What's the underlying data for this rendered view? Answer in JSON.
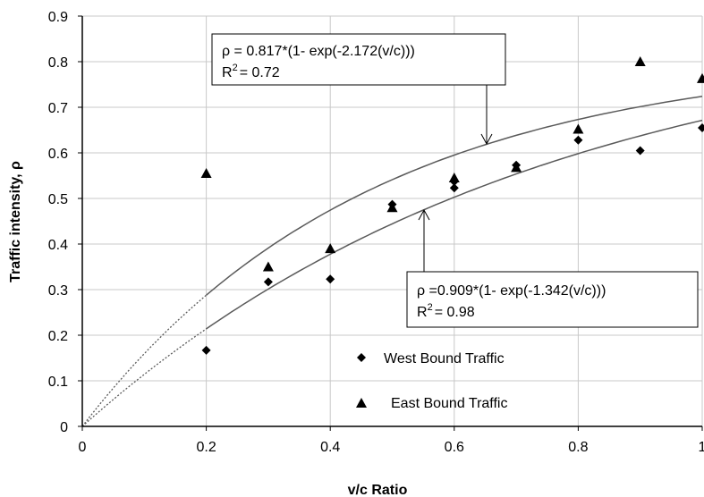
{
  "chart_data": {
    "type": "scatter",
    "title": "",
    "xlabel": "v/c Ratio",
    "ylabel": "Traffic intensity, ρ",
    "xlim": [
      0,
      1
    ],
    "ylim": [
      0,
      0.9
    ],
    "xticks": [
      0,
      0.2,
      0.4,
      0.6,
      0.8,
      1
    ],
    "xtick_labels": [
      "0",
      "0.2",
      "0.4",
      "0.6",
      "0.8",
      "1"
    ],
    "yticks": [
      0,
      0.1,
      0.2,
      0.3,
      0.4,
      0.5,
      0.6,
      0.7,
      0.8,
      0.9
    ],
    "ytick_labels": [
      "0",
      "0.1",
      "0.2",
      "0.3",
      "0.4",
      "0.5",
      "0.6",
      "0.7",
      "0.8",
      "0.9"
    ],
    "grid": "vertical and horizontal major gridlines",
    "legend_placement": "bottom-center",
    "series": [
      {
        "name": "West Bound Traffic",
        "marker": "diamond",
        "x": [
          0.2,
          0.3,
          0.4,
          0.5,
          0.6,
          0.6,
          0.7,
          0.8,
          0.9,
          1.0
        ],
        "y": [
          0.167,
          0.317,
          0.323,
          0.487,
          0.523,
          0.537,
          0.573,
          0.628,
          0.605,
          0.655
        ]
      },
      {
        "name": "East Bound Traffic",
        "marker": "triangle",
        "x": [
          0.2,
          0.3,
          0.4,
          0.5,
          0.6,
          0.7,
          0.8,
          0.9,
          1.0
        ],
        "y": [
          0.555,
          0.35,
          0.39,
          0.48,
          0.545,
          0.568,
          0.652,
          0.8,
          0.763
        ]
      }
    ],
    "fits": [
      {
        "a": 0.817,
        "b": 2.172,
        "equation": "ρ = 0.817*(1- exp(-2.172(v/c)))",
        "r2_prefix": "R",
        "r2_sup": "2",
        "r2_value": "= 0.72"
      },
      {
        "a": 0.909,
        "b": 1.342,
        "equation": "ρ =0.909*(1- exp(-1.342(v/c)))",
        "r2_prefix": "R",
        "r2_sup": "2",
        "r2_value": "= 0.98"
      }
    ],
    "colors": {
      "axis": "#000000",
      "grid": "#c8c8c8",
      "curve": "#5a5a5a",
      "marker": "#000000"
    }
  }
}
